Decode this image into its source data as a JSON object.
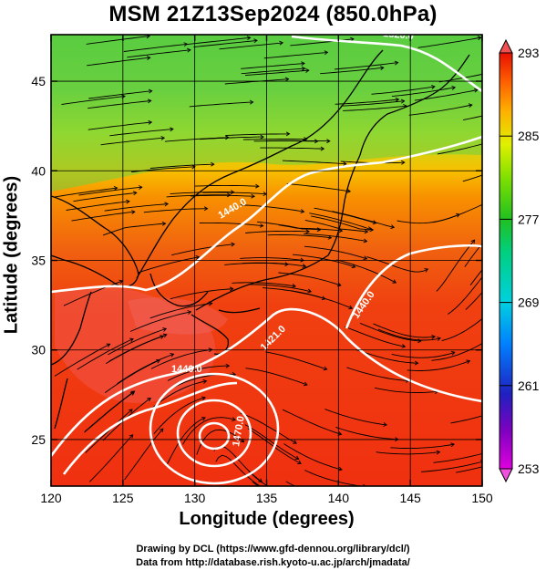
{
  "title": "MSM 21Z13Sep2024 (850.0hPa)",
  "axes": {
    "xlabel": "Longitude (degrees)",
    "ylabel": "Latitude  (degrees)",
    "xticks": [
      120,
      125,
      130,
      135,
      140,
      145,
      150
    ],
    "yticks": [
      25,
      30,
      35,
      40,
      45
    ],
    "xlim": [
      120,
      150
    ],
    "ylim": [
      22.4,
      47.6
    ]
  },
  "colorbar": {
    "labels": [
      293,
      285,
      277,
      269,
      261,
      253
    ],
    "range": [
      253,
      293
    ],
    "colors": [
      "#e000e0",
      "#8000c0",
      "#2020c0",
      "#0080ff",
      "#00d0e0",
      "#00d080",
      "#20c020",
      "#80e000",
      "#e0f000",
      "#ffb000",
      "#ff6000",
      "#e81000"
    ]
  },
  "contours": [
    {
      "label": "1440.0"
    },
    {
      "label": "1440.0"
    },
    {
      "label": "1421.0"
    },
    {
      "label": "1440.0"
    },
    {
      "label": "1470.0"
    },
    {
      "label": "1520.0"
    }
  ],
  "credits": {
    "line1": "Drawing by DCL (https://www.gfd-dennou.org/library/dcl/)",
    "line2": "Data from http://database.rish.kyoto-u.ac.jp/arch/jmadata/"
  }
}
